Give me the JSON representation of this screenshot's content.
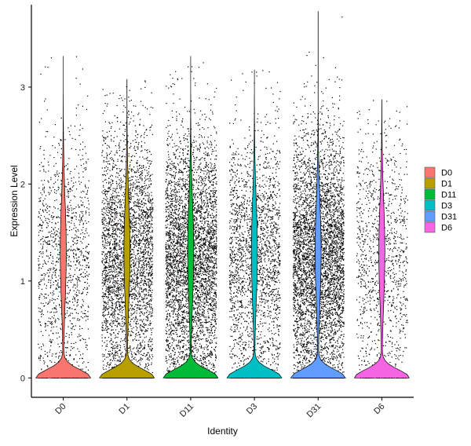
{
  "chart_data": {
    "type": "violin",
    "title": "",
    "xlabel": "Identity",
    "ylabel": "Expression Level",
    "ylim": [
      -0.2,
      3.85
    ],
    "yticks": [
      0,
      1,
      2,
      3
    ],
    "categories": [
      "D0",
      "D1",
      "D11",
      "D3",
      "D31",
      "D6"
    ],
    "colors": [
      "#F8766D",
      "#B79F00",
      "#00BA38",
      "#00BFC4",
      "#619CFF",
      "#F564E3"
    ],
    "max_values": [
      3.32,
      3.08,
      3.32,
      3.18,
      3.78,
      2.87
    ],
    "cell_counts": [
      1300,
      3600,
      4400,
      2200,
      4800,
      1100
    ],
    "legend": [
      "D0",
      "D1",
      "D11",
      "D3",
      "D31",
      "D6"
    ],
    "legend_position": "right",
    "grid": false
  }
}
